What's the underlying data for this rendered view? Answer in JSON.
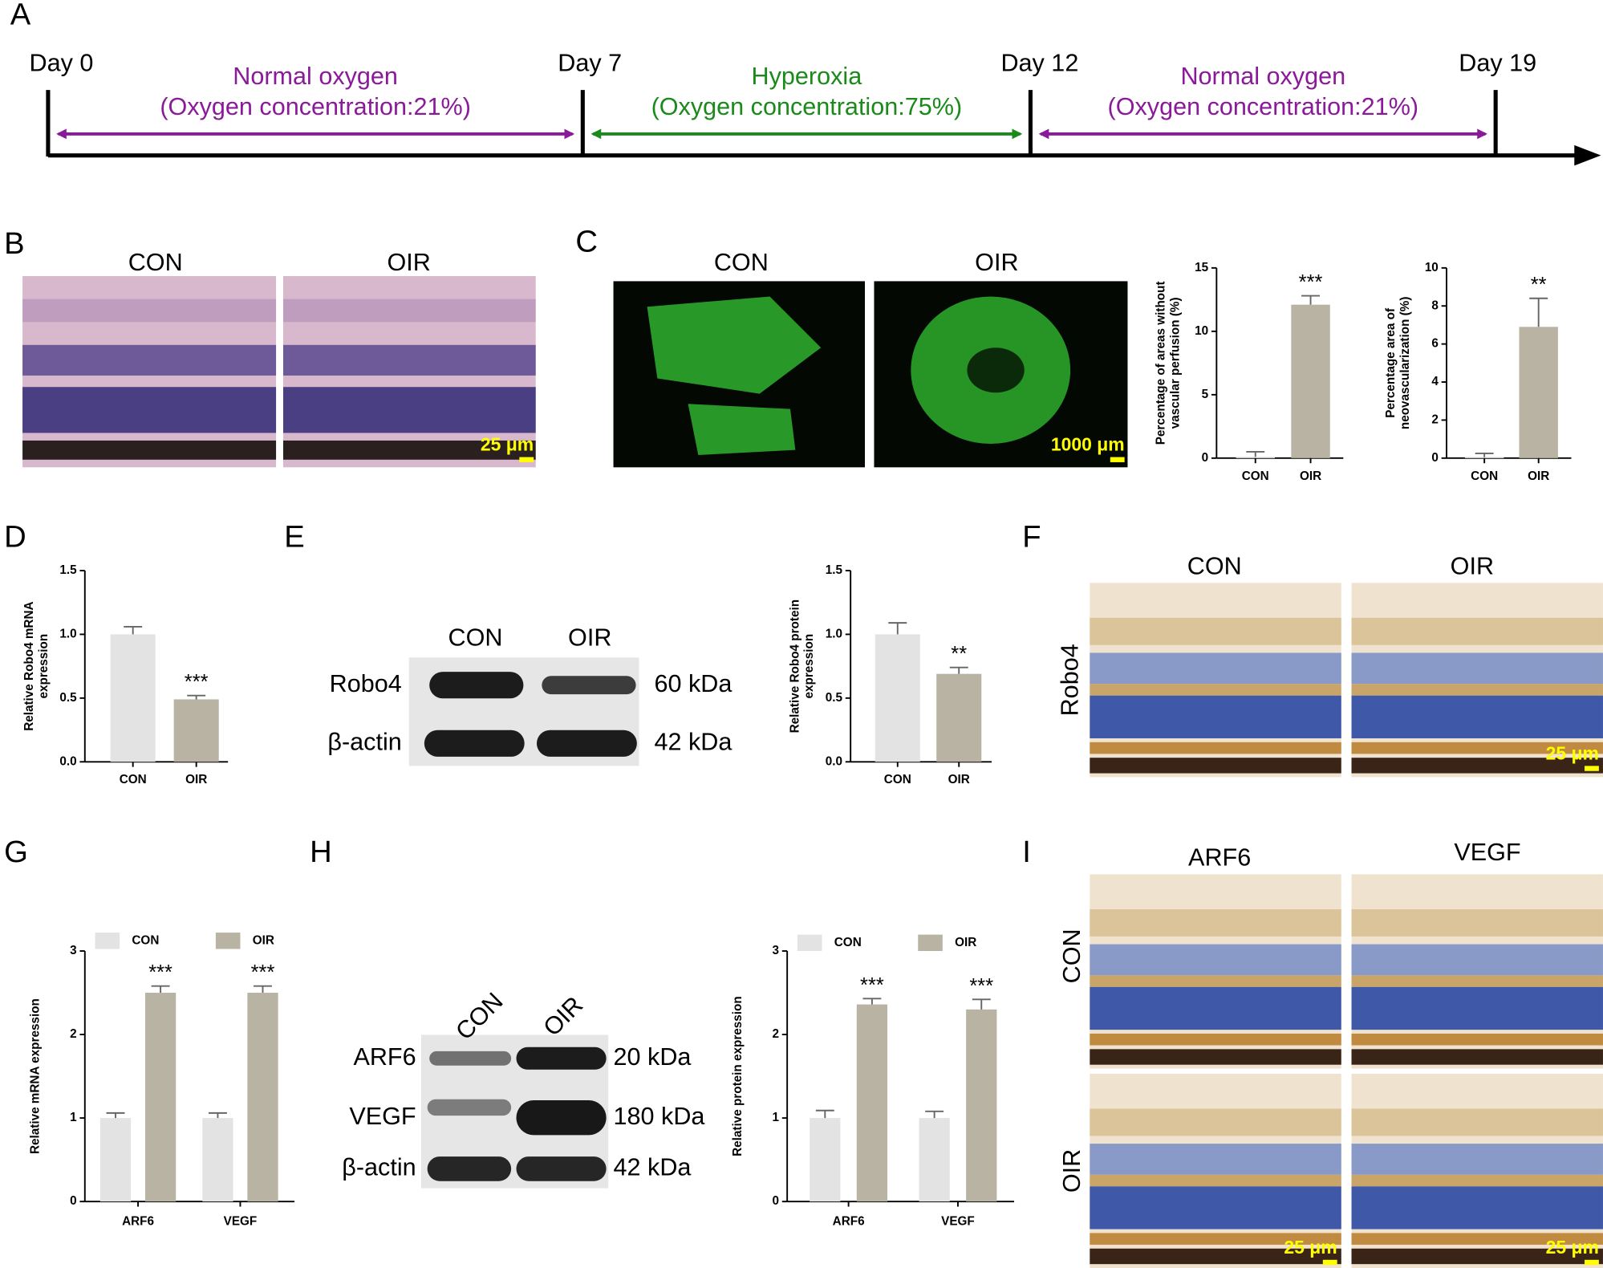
{
  "panel_labels": [
    "A",
    "B",
    "C",
    "D",
    "E",
    "F",
    "G",
    "H",
    "I"
  ],
  "timeline": {
    "days": [
      "Day 0",
      "Day 7",
      "Day 12",
      "Day 19"
    ],
    "phases": [
      {
        "title": "Normal oxygen",
        "detail": "(Oxygen concentration:21%)",
        "color": "#8b1a9b"
      },
      {
        "title": "Hyperoxia",
        "detail": "(Oxygen concentration:75%)",
        "color": "#1a8a1a"
      },
      {
        "title": "Normal oxygen",
        "detail": "(Oxygen concentration:21%)",
        "color": "#8b1a9b"
      }
    ]
  },
  "panel_b": {
    "titles": [
      "CON",
      "OIR"
    ],
    "scale_bar": "25 μm"
  },
  "panel_c": {
    "titles": [
      "CON",
      "OIR"
    ],
    "scale_bar": "1000 μm"
  },
  "panel_e_blot": {
    "lanes": [
      "CON",
      "OIR"
    ],
    "rows": [
      {
        "protein": "Robo4",
        "size": "60 kDa"
      },
      {
        "protein": "β-actin",
        "size": "42 kDa"
      }
    ]
  },
  "panel_f": {
    "titles": [
      "CON",
      "OIR"
    ],
    "row": "Robo4",
    "scale_bar": "25 μm"
  },
  "panel_h_blot": {
    "lanes": [
      "CON",
      "OIR"
    ],
    "rows": [
      {
        "protein": "ARF6",
        "size": "20 kDa"
      },
      {
        "protein": "VEGF",
        "size": "180 kDa"
      },
      {
        "protein": "β-actin",
        "size": "42 kDa"
      }
    ]
  },
  "panel_i": {
    "titles": [
      "ARF6",
      "VEGF"
    ],
    "rows": [
      "CON",
      "OIR"
    ],
    "scale_bars": [
      "25 μm",
      "25 μm"
    ]
  },
  "chart_data": [
    {
      "type": "bar",
      "categories": [
        "CON",
        "OIR"
      ],
      "values": [
        0.1,
        12.1
      ],
      "errors": [
        0.4,
        0.7
      ],
      "colors": [
        "#e3e3e3",
        "#b8b3a3"
      ],
      "ylabel": [
        "Percentage of areas without",
        "vascular perfusion (%)"
      ],
      "ylim": [
        0,
        15
      ],
      "yticks": [
        0,
        5,
        10,
        15
      ],
      "annotations": [
        {
          "index": 1,
          "text": "***"
        }
      ]
    },
    {
      "type": "bar",
      "categories": [
        "CON",
        "OIR"
      ],
      "values": [
        0.05,
        6.9
      ],
      "errors": [
        0.2,
        1.5
      ],
      "colors": [
        "#e3e3e3",
        "#b8b3a3"
      ],
      "ylabel": [
        "Percentage area of",
        "neovascularization (%)"
      ],
      "ylim": [
        0,
        10
      ],
      "yticks": [
        0,
        2,
        4,
        6,
        8,
        10
      ],
      "annotations": [
        {
          "index": 1,
          "text": "**"
        }
      ]
    },
    {
      "type": "bar",
      "categories": [
        "CON",
        "OIR"
      ],
      "values": [
        1.0,
        0.49
      ],
      "errors": [
        0.06,
        0.03
      ],
      "colors": [
        "#e3e3e3",
        "#b8b3a3"
      ],
      "ylabel": [
        "Relative Robo4 mRNA",
        "expression"
      ],
      "ylim": [
        0,
        1.5
      ],
      "yticks": [
        {
          "value": 0,
          "label": "0.0"
        },
        0.5,
        {
          "value": 1,
          "label": "1.0"
        },
        1.5
      ],
      "annotations": [
        {
          "index": 1,
          "text": "***"
        }
      ]
    },
    {
      "type": "bar",
      "categories": [
        "CON",
        "OIR"
      ],
      "values": [
        1.0,
        0.69
      ],
      "errors": [
        0.09,
        0.05
      ],
      "colors": [
        "#e3e3e3",
        "#b8b3a3"
      ],
      "ylabel": [
        "Relative Robo4 protein",
        "expression"
      ],
      "ylim": [
        0,
        1.5
      ],
      "yticks": [
        {
          "value": 0,
          "label": "0.0"
        },
        0.5,
        {
          "value": 1,
          "label": "1.0"
        },
        1.5
      ],
      "annotations": [
        {
          "index": 1,
          "text": "**"
        }
      ]
    },
    {
      "type": "grouped_bar",
      "categories": [
        "ARF6",
        "VEGF"
      ],
      "ylabel": [
        "Relative mRNA expression"
      ],
      "ylim": [
        0,
        3
      ],
      "yticks": [
        0,
        1,
        2,
        3
      ],
      "series": [
        {
          "name": "CON",
          "color": "#e3e3e3",
          "values": [
            1.0,
            1.0
          ],
          "errors": [
            0.06,
            0.06
          ]
        },
        {
          "name": "OIR",
          "color": "#b8b3a3",
          "values": [
            2.5,
            2.5
          ],
          "errors": [
            0.08,
            0.08
          ],
          "annotations": [
            "***",
            "***"
          ]
        }
      ]
    },
    {
      "type": "grouped_bar",
      "categories": [
        "ARF6",
        "VEGF"
      ],
      "ylabel": [
        "Relative protein expression"
      ],
      "ylim": [
        0,
        3
      ],
      "yticks": [
        0,
        1,
        2,
        3
      ],
      "series": [
        {
          "name": "CON",
          "color": "#e3e3e3",
          "values": [
            1.0,
            1.0
          ],
          "errors": [
            0.09,
            0.08
          ]
        },
        {
          "name": "OIR",
          "color": "#b8b3a3",
          "values": [
            2.36,
            2.3
          ],
          "errors": [
            0.07,
            0.12
          ],
          "annotations": [
            "***",
            "***"
          ]
        }
      ]
    }
  ]
}
